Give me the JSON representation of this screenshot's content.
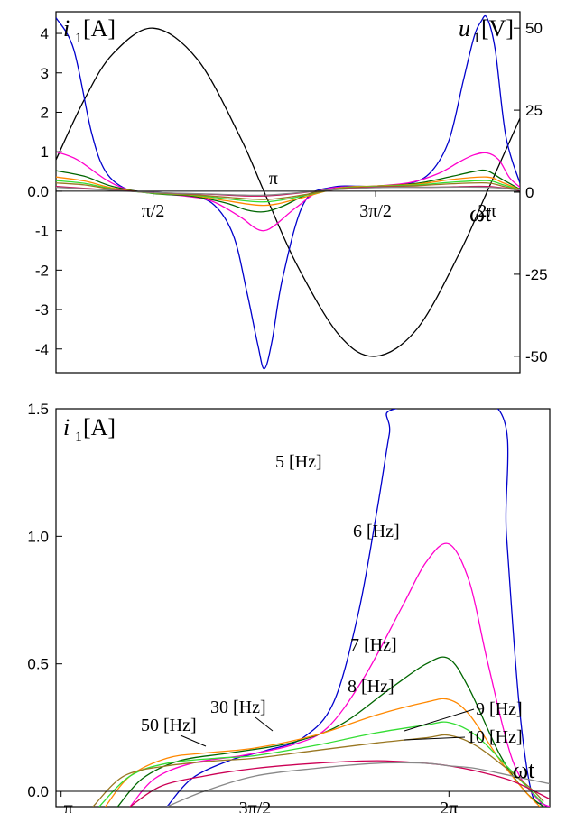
{
  "chart_data": [
    {
      "type": "line",
      "ylabel_left": "i1 [A]",
      "ylabel_left_symbol": "i",
      "ylabel_left_sub": "1",
      "ylabel_left_unit": "[A]",
      "ylabel_right_symbol": "u",
      "ylabel_right_sub": "1",
      "ylabel_right_unit": "[V]",
      "xlabel": "ωt",
      "xlim": [
        0.2,
        6.75
      ],
      "ylim_left": [
        -4.6,
        4.55
      ],
      "ylim_right": [
        -55,
        55
      ],
      "yticks_left": [
        "4",
        "3",
        "2",
        "1",
        "0.0",
        "-1",
        "-2",
        "-3",
        "-4"
      ],
      "yticks_left_values": [
        4,
        3,
        2,
        1,
        0,
        -1,
        -2,
        -3,
        -4
      ],
      "yticks_right": [
        "50",
        "25",
        "0",
        "-25",
        "-50"
      ],
      "yticks_right_values": [
        50,
        25,
        0,
        -25,
        -50
      ],
      "xticks": [
        "π/2",
        "π",
        "3π/2",
        "2π"
      ],
      "xticks_values": [
        1.5708,
        3.1416,
        4.7124,
        6.2832
      ],
      "grid": false,
      "series": [
        {
          "role": "voltage",
          "color": "#000000",
          "amplitude_V": 50,
          "x": [
            0.2,
            0.6,
            1.0,
            1.5708,
            2.2,
            2.8,
            3.1416,
            3.6,
            4.2,
            4.7124,
            5.3,
            5.9,
            6.2832,
            6.75
          ],
          "y": [
            9.9,
            28.2,
            42.1,
            50.0,
            40.4,
            16.8,
            0.0,
            -22.1,
            -43.6,
            -50.0,
            -41.6,
            -18.4,
            0.0,
            22.5
          ]
        },
        {
          "role": "current",
          "color": "#0000cc",
          "x": [
            0.2,
            0.45,
            0.7,
            0.9,
            1.2,
            1.5708,
            2.0,
            2.4,
            2.7,
            2.9,
            3.05,
            3.1416,
            3.25,
            3.4,
            3.7,
            4.1,
            4.7124,
            5.2,
            5.5,
            5.75,
            5.95,
            6.1,
            6.2,
            6.2832,
            6.4,
            6.55,
            6.75
          ],
          "y": [
            4.4,
            3.6,
            1.5,
            0.5,
            0.05,
            -0.02,
            -0.1,
            -0.3,
            -1.1,
            -2.6,
            -3.9,
            -4.5,
            -3.8,
            -2.2,
            -0.3,
            0.1,
            0.12,
            0.2,
            0.5,
            1.3,
            2.8,
            3.9,
            4.3,
            4.4,
            3.6,
            1.4,
            0.2
          ]
        },
        {
          "role": "current",
          "color": "#ff00cc",
          "x": [
            0.2,
            0.5,
            0.9,
            1.2,
            1.5708,
            2.0,
            2.4,
            2.8,
            3.0,
            3.1416,
            3.3,
            3.6,
            4.0,
            4.7124,
            5.2,
            5.6,
            5.9,
            6.1,
            6.2832,
            6.45,
            6.6,
            6.75
          ],
          "y": [
            1.0,
            0.8,
            0.3,
            0.05,
            -0.05,
            -0.12,
            -0.25,
            -0.65,
            -0.92,
            -1.0,
            -0.85,
            -0.4,
            0.05,
            0.13,
            0.22,
            0.45,
            0.75,
            0.92,
            0.97,
            0.8,
            0.35,
            0.1
          ]
        },
        {
          "role": "current",
          "color": "#006600",
          "x": [
            0.2,
            0.6,
            1.0,
            1.5708,
            2.1,
            2.6,
            2.9,
            3.1416,
            3.4,
            3.8,
            4.3,
            4.7124,
            5.3,
            5.8,
            6.1,
            6.2832,
            6.5,
            6.75
          ],
          "y": [
            0.52,
            0.38,
            0.12,
            -0.06,
            -0.12,
            -0.3,
            -0.48,
            -0.52,
            -0.38,
            -0.05,
            0.1,
            0.13,
            0.2,
            0.38,
            0.5,
            0.52,
            0.3,
            0.05
          ]
        },
        {
          "role": "current",
          "color": "#ff8800",
          "x": [
            0.2,
            0.6,
            1.0,
            1.5708,
            2.1,
            2.6,
            3.1416,
            3.6,
            4.2,
            4.7124,
            5.3,
            5.8,
            6.2832,
            6.5,
            6.75
          ],
          "y": [
            0.36,
            0.26,
            0.08,
            -0.05,
            -0.1,
            -0.24,
            -0.36,
            -0.2,
            0.08,
            0.13,
            0.18,
            0.3,
            0.36,
            0.22,
            0.04
          ]
        },
        {
          "role": "current",
          "color": "#33dd33",
          "x": [
            0.2,
            0.6,
            1.0,
            1.5708,
            2.1,
            2.6,
            3.1416,
            3.6,
            4.2,
            4.7124,
            5.3,
            5.8,
            6.2832,
            6.5,
            6.75
          ],
          "y": [
            0.27,
            0.2,
            0.06,
            -0.05,
            -0.09,
            -0.19,
            -0.27,
            -0.15,
            0.07,
            0.12,
            0.16,
            0.23,
            0.27,
            0.17,
            0.03
          ]
        },
        {
          "role": "current",
          "color": "#997722",
          "x": [
            0.2,
            0.6,
            1.0,
            1.5708,
            2.1,
            2.6,
            3.1416,
            3.6,
            4.2,
            4.7124,
            5.3,
            5.8,
            6.2832,
            6.5,
            6.75
          ],
          "y": [
            0.21,
            0.16,
            0.05,
            -0.04,
            -0.08,
            -0.15,
            -0.21,
            -0.12,
            0.06,
            0.11,
            0.14,
            0.19,
            0.21,
            0.13,
            0.02
          ]
        },
        {
          "role": "current",
          "color": "#cc0055",
          "x": [
            0.2,
            0.8,
            1.5708,
            2.4,
            3.1416,
            4.0,
            4.7124,
            5.5,
            6.2832,
            6.75
          ],
          "y": [
            0.12,
            0.05,
            -0.03,
            -0.08,
            -0.12,
            0.02,
            0.1,
            0.1,
            0.12,
            0.02
          ]
        },
        {
          "role": "current",
          "color": "#888888",
          "x": [
            0.2,
            0.8,
            1.5708,
            2.4,
            3.1416,
            4.0,
            4.7124,
            5.5,
            6.2832,
            6.75
          ],
          "y": [
            0.1,
            0.04,
            -0.03,
            -0.07,
            -0.1,
            0.02,
            0.09,
            0.1,
            0.1,
            0.03
          ]
        }
      ]
    },
    {
      "type": "line",
      "ylabel_symbol": "i",
      "ylabel_sub": "1",
      "ylabel_unit": "[A]",
      "xlabel": "ωt",
      "xlim": [
        3.1,
        7.1
      ],
      "ylim": [
        -0.06,
        1.5
      ],
      "yticks": [
        "1.5",
        "1.0",
        "0.5",
        "0.0"
      ],
      "yticks_values": [
        1.5,
        1.0,
        0.5,
        0.0
      ],
      "xticks": [
        "π",
        "3π/2",
        "2π"
      ],
      "xticks_values": [
        3.1416,
        4.7124,
        6.2832
      ],
      "grid": false,
      "annotations": [
        "5 [Hz]",
        "6 [Hz]",
        "7 [Hz]",
        "8 [Hz]",
        "9 [Hz]",
        "10 [Hz]",
        "30 [Hz]",
        "50 [Hz]"
      ],
      "series": [
        {
          "name": "5 [Hz]",
          "color": "#0000cc",
          "x": [
            4.0,
            4.2,
            4.5,
            4.8,
            5.1,
            5.35,
            5.55,
            5.7,
            5.8,
            5.85,
            6.68,
            6.75,
            6.85,
            6.95,
            7.05,
            7.1
          ],
          "y": [
            -0.06,
            0.05,
            0.12,
            0.16,
            0.21,
            0.35,
            0.7,
            1.1,
            1.4,
            1.5,
            1.5,
            1.0,
            0.35,
            0.0,
            -0.05,
            -0.06
          ]
        },
        {
          "name": "6 [Hz]",
          "color": "#ff00cc",
          "x": [
            3.7,
            3.9,
            4.2,
            4.6,
            5.0,
            5.3,
            5.6,
            5.9,
            6.1,
            6.2832,
            6.45,
            6.6,
            6.8,
            7.0,
            7.1
          ],
          "y": [
            -0.06,
            0.05,
            0.11,
            0.14,
            0.18,
            0.25,
            0.45,
            0.72,
            0.9,
            0.97,
            0.82,
            0.5,
            0.12,
            -0.03,
            -0.06
          ]
        },
        {
          "name": "7 [Hz]",
          "color": "#006600",
          "x": [
            3.6,
            3.8,
            4.1,
            4.5,
            5.0,
            5.4,
            5.8,
            6.1,
            6.2832,
            6.45,
            6.7,
            6.9,
            7.05
          ],
          "y": [
            -0.06,
            0.05,
            0.12,
            0.15,
            0.19,
            0.26,
            0.4,
            0.5,
            0.52,
            0.4,
            0.14,
            0.0,
            -0.06
          ]
        },
        {
          "name": "8 [Hz]",
          "color": "#ff8800",
          "x": [
            3.5,
            3.7,
            4.0,
            4.3,
            4.7124,
            5.2,
            5.7,
            6.1,
            6.2832,
            6.45,
            6.7,
            6.9,
            7.02
          ],
          "y": [
            -0.06,
            0.06,
            0.13,
            0.15,
            0.17,
            0.22,
            0.3,
            0.35,
            0.36,
            0.3,
            0.12,
            0.0,
            -0.06
          ]
        },
        {
          "name": "9 [Hz]",
          "color": "#33dd33",
          "x": [
            3.45,
            3.7,
            4.0,
            4.4,
            4.7124,
            5.2,
            5.7,
            6.1,
            6.2832,
            6.5,
            6.75,
            6.95,
            7.05
          ],
          "y": [
            -0.06,
            0.06,
            0.11,
            0.13,
            0.14,
            0.18,
            0.23,
            0.26,
            0.27,
            0.22,
            0.1,
            0.0,
            -0.05
          ]
        },
        {
          "name": "10 [Hz]",
          "color": "#997722",
          "x": [
            3.4,
            3.65,
            4.0,
            4.4,
            4.7124,
            5.2,
            5.7,
            6.1,
            6.2832,
            6.5,
            6.75,
            6.95,
            7.05
          ],
          "y": [
            -0.06,
            0.06,
            0.1,
            0.12,
            0.13,
            0.16,
            0.19,
            0.21,
            0.22,
            0.18,
            0.09,
            0.01,
            -0.04
          ]
        },
        {
          "name": "30 [Hz]",
          "color": "#cc0055",
          "x": [
            3.7,
            3.95,
            4.3,
            4.7124,
            5.2,
            5.7,
            6.1,
            6.2832,
            6.5,
            6.8,
            7.1
          ],
          "y": [
            -0.06,
            0.02,
            0.06,
            0.09,
            0.11,
            0.12,
            0.11,
            0.1,
            0.08,
            0.04,
            -0.03
          ]
        },
        {
          "name": "50 [Hz]",
          "color": "#888888",
          "x": [
            4.0,
            4.3,
            4.7124,
            5.2,
            5.7,
            6.1,
            6.2832,
            6.5,
            6.8,
            7.1
          ],
          "y": [
            -0.06,
            0.0,
            0.06,
            0.09,
            0.11,
            0.11,
            0.1,
            0.09,
            0.06,
            0.03
          ]
        }
      ]
    }
  ]
}
